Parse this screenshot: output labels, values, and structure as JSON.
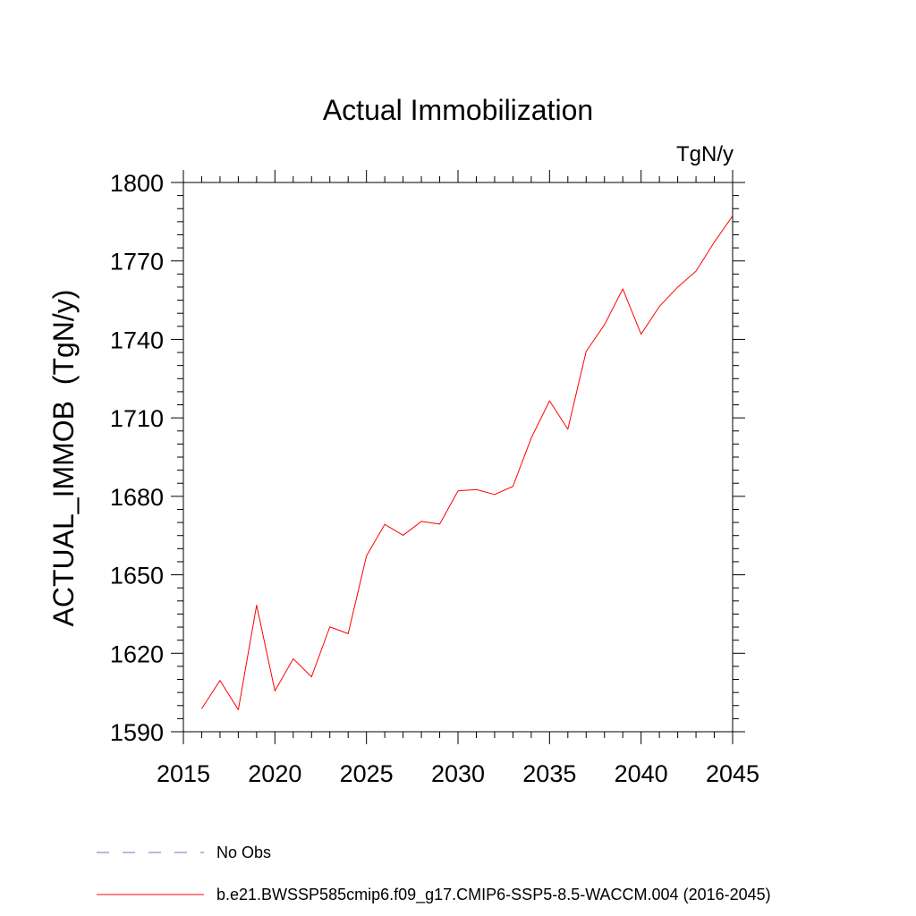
{
  "chart_data": {
    "type": "line",
    "title": "Actual Immobilization",
    "units_label": "TgN/y",
    "xlabel": "",
    "ylabel": "ACTUAL_IMMOB  (TgN/y)",
    "xlim": [
      2015,
      2045
    ],
    "ylim": [
      1590,
      1800
    ],
    "xticks": [
      2015,
      2020,
      2025,
      2030,
      2035,
      2040,
      2045
    ],
    "yticks": [
      1590,
      1620,
      1650,
      1680,
      1710,
      1740,
      1770,
      1800
    ],
    "x_minor_step": 1,
    "y_minor_step": 5,
    "series": [
      {
        "name": "b.e21.BWSSP585cmip6.f09_g17.CMIP6-SSP5-8.5-WACCM.004 (2016-2045)",
        "color": "#ff0000",
        "dash": "solid",
        "x": [
          2016,
          2017,
          2018,
          2019,
          2020,
          2021,
          2022,
          2023,
          2024,
          2025,
          2026,
          2027,
          2028,
          2029,
          2030,
          2031,
          2032,
          2033,
          2034,
          2035,
          2036,
          2037,
          2038,
          2039,
          2040,
          2041,
          2042,
          2043,
          2044,
          2045
        ],
        "values": [
          1598.8,
          1609.6,
          1598.4,
          1638.4,
          1605.6,
          1617.9,
          1611.0,
          1630.1,
          1627.5,
          1657.2,
          1669.3,
          1665.1,
          1670.4,
          1669.4,
          1682.1,
          1682.6,
          1680.7,
          1683.8,
          1702.3,
          1716.5,
          1705.7,
          1735.4,
          1745.6,
          1759.3,
          1742.0,
          1752.6,
          1760.0,
          1766.1,
          1777.2,
          1787.2
        ]
      }
    ],
    "legend": [
      {
        "label": "No Obs",
        "color": "#7b68c8",
        "dash": "dashed"
      },
      {
        "label": "b.e21.BWSSP585cmip6.f09_g17.CMIP6-SSP5-8.5-WACCM.004 (2016-2045)",
        "color": "#ff0000",
        "dash": "solid"
      }
    ],
    "legend_position": "bottom",
    "grid": false
  }
}
